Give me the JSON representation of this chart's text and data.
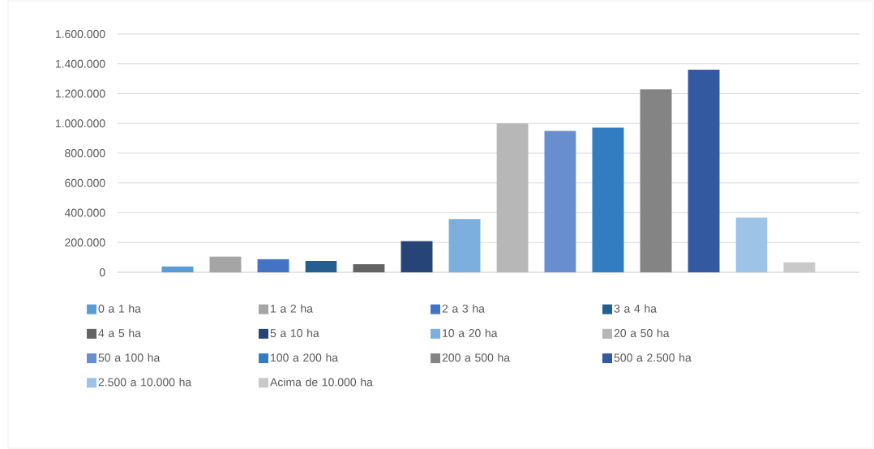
{
  "chart_data": {
    "type": "bar",
    "categories": [
      null
    ],
    "series": [
      {
        "name": "0 a 1 ha",
        "color": "#5b9bd5",
        "values": [
          39000
        ]
      },
      {
        "name": "1 a 2 ha",
        "color": "#a5a5a5",
        "values": [
          106000
        ]
      },
      {
        "name": "2 a 3 ha",
        "color": "#4472c4",
        "values": [
          88000
        ]
      },
      {
        "name": "3 a 4 ha",
        "color": "#255e91",
        "values": [
          76000
        ]
      },
      {
        "name": "4 a 5 ha",
        "color": "#636363",
        "values": [
          55000
        ]
      },
      {
        "name": "5 a 10 ha",
        "color": "#264478",
        "values": [
          209000
        ]
      },
      {
        "name": "10 a 20 ha",
        "color": "#7cafdd",
        "values": [
          358000
        ]
      },
      {
        "name": "20 a 50 ha",
        "color": "#b7b7b7",
        "values": [
          1000000
        ]
      },
      {
        "name": "50 a 100 ha",
        "color": "#698ed0",
        "values": [
          950000
        ]
      },
      {
        "name": "100 a 200 ha",
        "color": "#327dc2",
        "values": [
          972000
        ]
      },
      {
        "name": "200 a 500 ha",
        "color": "#848484",
        "values": [
          1228000
        ]
      },
      {
        "name": "500 a 2.500 ha",
        "color": "#335aa1",
        "values": [
          1360000
        ]
      },
      {
        "name": "2.500 a 10.000 ha",
        "color": "#9dc3e6",
        "values": [
          367000
        ]
      },
      {
        "name": "Acima de 10.000 ha",
        "color": "#c9c9c9",
        "values": [
          68000
        ]
      }
    ],
    "ylim": [
      0,
      1600000
    ],
    "yticks": [
      {
        "value": 0,
        "label": "0"
      },
      {
        "value": 200000,
        "label": "200.000"
      },
      {
        "value": 400000,
        "label": "400.000"
      },
      {
        "value": 600000,
        "label": "600.000"
      },
      {
        "value": 800000,
        "label": "800.000"
      },
      {
        "value": 1000000,
        "label": "1.000.000"
      },
      {
        "value": 1200000,
        "label": "1.200.000"
      },
      {
        "value": 1400000,
        "label": "1.400.000"
      },
      {
        "value": 1600000,
        "label": "1.600.000"
      }
    ],
    "grid": "y",
    "legend": "bottom"
  }
}
